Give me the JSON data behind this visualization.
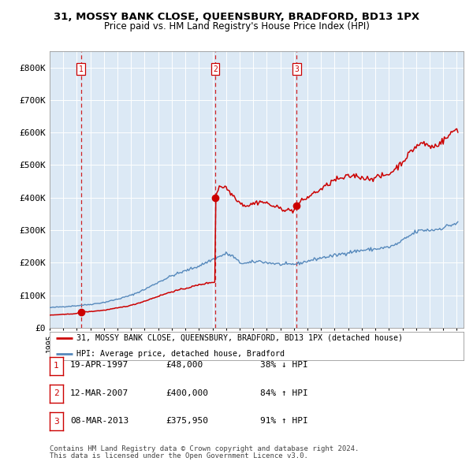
{
  "title": "31, MOSSY BANK CLOSE, QUEENSBURY, BRADFORD, BD13 1PX",
  "subtitle": "Price paid vs. HM Land Registry's House Price Index (HPI)",
  "bg_color": "#dce9f5",
  "red_line_color": "#cc0000",
  "blue_line_color": "#5588bb",
  "vline_color": "#cc0000",
  "ylim": [
    0,
    850000
  ],
  "yticks": [
    0,
    100000,
    200000,
    300000,
    400000,
    500000,
    600000,
    700000,
    800000
  ],
  "ytick_labels": [
    "£0",
    "£100K",
    "£200K",
    "£300K",
    "£400K",
    "£500K",
    "£600K",
    "£700K",
    "£800K"
  ],
  "sale_years": [
    1997.3,
    2007.2,
    2013.2
  ],
  "sale_prices": [
    48000,
    400000,
    375950
  ],
  "sale_labels": [
    "1",
    "2",
    "3"
  ],
  "legend_entries": [
    "31, MOSSY BANK CLOSE, QUEENSBURY, BRADFORD, BD13 1PX (detached house)",
    "HPI: Average price, detached house, Bradford"
  ],
  "table_rows": [
    {
      "num": "1",
      "date": "19-APR-1997",
      "price": "£48,000",
      "hpi": "38% ↓ HPI"
    },
    {
      "num": "2",
      "date": "12-MAR-2007",
      "price": "£400,000",
      "hpi": "84% ↑ HPI"
    },
    {
      "num": "3",
      "date": "08-MAR-2013",
      "price": "£375,950",
      "hpi": "91% ↑ HPI"
    }
  ],
  "footnote1": "Contains HM Land Registry data © Crown copyright and database right 2024.",
  "footnote2": "This data is licensed under the Open Government Licence v3.0."
}
